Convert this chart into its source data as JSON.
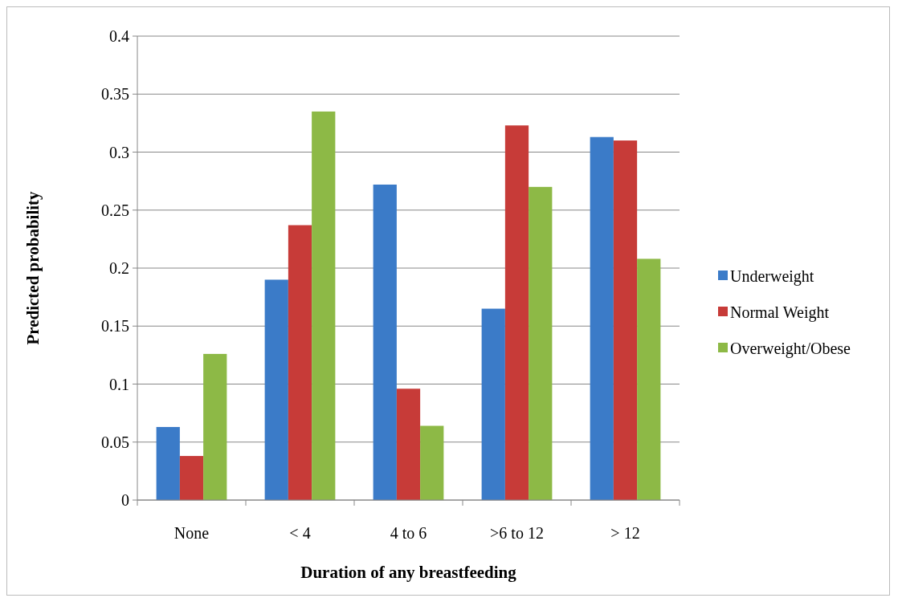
{
  "chart_data": {
    "type": "bar",
    "xlabel": "Duration of any breastfeeding",
    "ylabel": "Predicted probability",
    "categories": [
      "None",
      "< 4",
      "4 to 6",
      ">6 to 12",
      "> 12"
    ],
    "series": [
      {
        "name": "Underweight",
        "color": "#3b7bc8",
        "values": [
          0.063,
          0.19,
          0.272,
          0.165,
          0.313
        ]
      },
      {
        "name": "Normal Weight",
        "color": "#c73b38",
        "values": [
          0.038,
          0.237,
          0.096,
          0.323,
          0.31
        ]
      },
      {
        "name": "Overweight/Obese",
        "color": "#8db946",
        "values": [
          0.126,
          0.335,
          0.064,
          0.27,
          0.208
        ]
      }
    ],
    "ylim": [
      0,
      0.4
    ],
    "yticks": [
      0,
      0.05,
      0.1,
      0.15,
      0.2,
      0.25,
      0.3,
      0.35,
      0.4
    ],
    "grid": "y",
    "legend": "right"
  }
}
